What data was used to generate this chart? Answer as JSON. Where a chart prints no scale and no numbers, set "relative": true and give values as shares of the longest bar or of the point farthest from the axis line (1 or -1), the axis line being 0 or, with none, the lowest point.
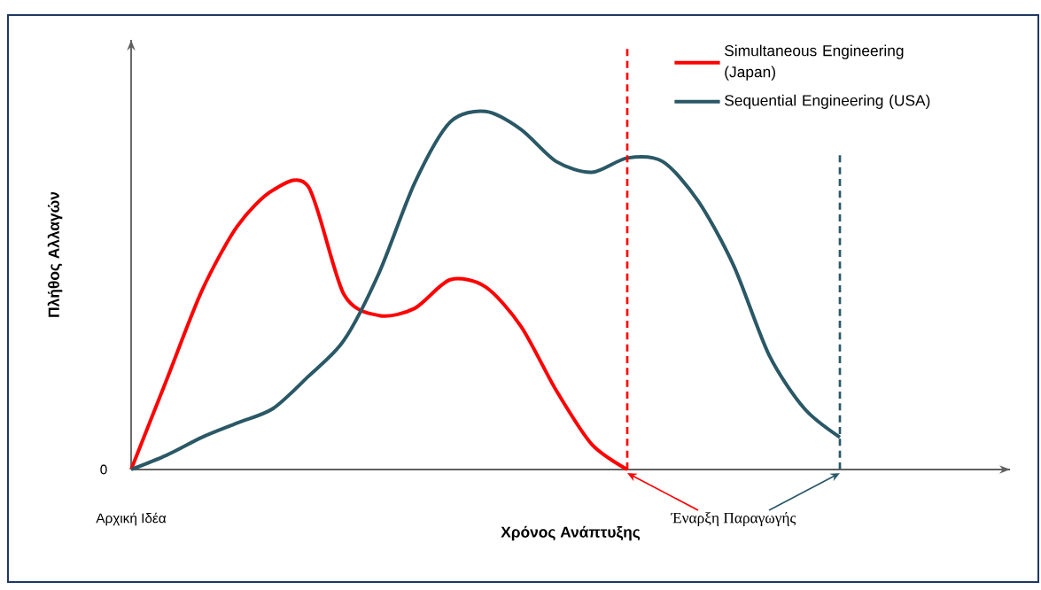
{
  "chart_data": {
    "type": "line",
    "relative": true,
    "xlabel": "Χρόνος Ανάπτυξης",
    "ylabel": "Πλήθος Αλλαγών",
    "categories": [
      null,
      null,
      null,
      null,
      null,
      null,
      null,
      null,
      null,
      null,
      null,
      null,
      null,
      null,
      null,
      null,
      null,
      null,
      null,
      null,
      null
    ],
    "series": [
      {
        "name": "Simultaneous Engineering (Japan)",
        "color": "#ff0000",
        "values": [
          0,
          0.25,
          0.5,
          0.68,
          0.78,
          0.79,
          0.49,
          0.43,
          0.45,
          0.53,
          0.51,
          0.4,
          0.22,
          0.07,
          0,
          null,
          null,
          null,
          null,
          null,
          null
        ]
      },
      {
        "name": "Sequential Engineering (USA)",
        "color": "#2a5866",
        "values": [
          0,
          0.04,
          0.09,
          0.13,
          0.17,
          0.26,
          0.36,
          0.55,
          0.8,
          0.97,
          1,
          0.95,
          0.86,
          0.83,
          0.87,
          0.86,
          0.75,
          0.57,
          0.32,
          0.17,
          0.09
        ]
      }
    ],
    "annotations": [
      "0",
      "Αρχική Ιδέα",
      "Έναρξη Παραγωγής"
    ],
    "legend": "top right"
  }
}
